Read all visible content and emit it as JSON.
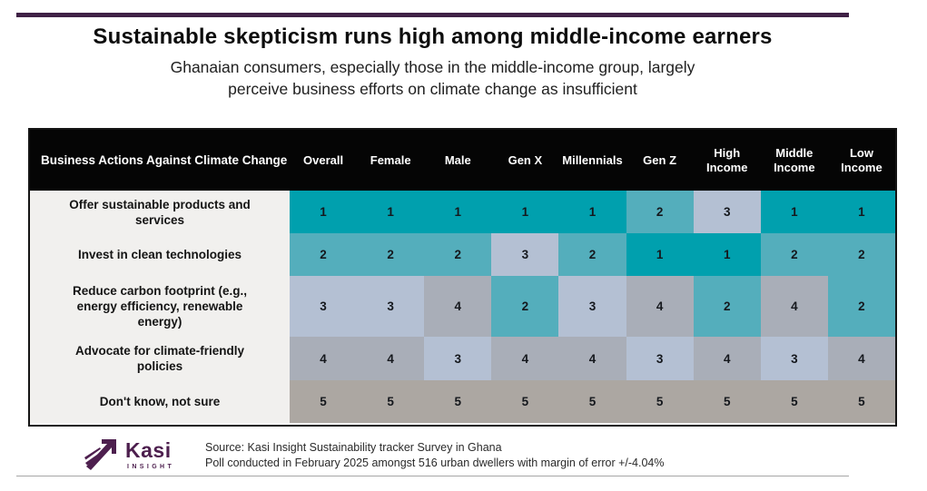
{
  "page": {
    "title": "Sustainable skepticism runs high among middle-income earners",
    "subtitle_line1": "Ghanaian consumers, especially those in the middle-income group, largely",
    "subtitle_line2": "perceive business efforts on climate change as insufficient"
  },
  "chart_data": {
    "type": "heatmap",
    "title": "Sustainable skepticism runs high among middle-income earners",
    "subtitle": "Ghanaian consumers, especially those in the middle-income group, largely perceive business efforts on climate change as insufficient",
    "row_header": "Business Actions Against Climate Change",
    "columns": [
      "Overall",
      "Female",
      "Male",
      "Gen X",
      "Millennials",
      "Gen Z",
      "High Income",
      "Middle Income",
      "Low Income"
    ],
    "rows": [
      {
        "label": "Offer sustainable products and services",
        "values": [
          1,
          1,
          1,
          1,
          1,
          2,
          3,
          1,
          1
        ]
      },
      {
        "label": "Invest in clean technologies",
        "values": [
          2,
          2,
          2,
          3,
          2,
          1,
          1,
          2,
          2
        ]
      },
      {
        "label": "Reduce carbon footprint (e.g., energy efficiency, renewable energy)",
        "values": [
          3,
          3,
          4,
          2,
          3,
          4,
          2,
          4,
          2
        ]
      },
      {
        "label": "Advocate for climate-friendly policies",
        "values": [
          4,
          4,
          3,
          4,
          4,
          3,
          4,
          3,
          4
        ]
      },
      {
        "label": "Don't know, not sure",
        "values": [
          5,
          5,
          5,
          5,
          5,
          5,
          5,
          5,
          5
        ]
      }
    ],
    "value_scale": "rank 1 (highest) to 5 (lowest)",
    "value_colors": {
      "1": "#00a0ae",
      "2": "#54aebc",
      "3": "#b4c0d3",
      "4": "#a9aeb8",
      "5": "#aca7a2"
    },
    "header_bg": "#050505",
    "label_column_bg": "#f1f0ee"
  },
  "footer": {
    "logo_name": "Kasi",
    "logo_subtext": "INSIGHT",
    "source_line1": "Source: Kasi Insight Sustainability tracker Survey in Ghana",
    "source_line2": "Poll conducted in February 2025 amongst 516 urban dwellers with margin of error +/-4.04%"
  },
  "colors": {
    "accent_bar": "#3f2145",
    "logo_purple": "#4d1f4e",
    "divider_gray": "#a6a6a6"
  }
}
